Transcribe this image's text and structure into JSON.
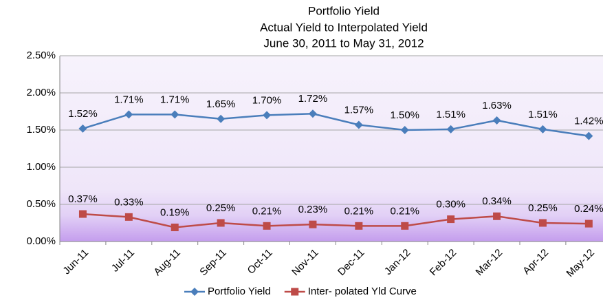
{
  "chart_data": {
    "type": "line",
    "title": "Portfolio Yield",
    "subtitle": [
      "Actual Yield to Interpolated Yield",
      "June 30,  2011  to  May 31,  2012"
    ],
    "categories": [
      "Jun-11",
      "Jul-11",
      "Aug-11",
      "Sep-11",
      "Oct-11",
      "Nov-11",
      "Dec-11",
      "Jan-12",
      "Feb-12",
      "Mar-12",
      "Apr-12",
      "May-12"
    ],
    "series": [
      {
        "name": "Portfolio  Yield",
        "color": "#4a7ebb",
        "marker": "diamond",
        "values": [
          1.52,
          1.71,
          1.71,
          1.65,
          1.7,
          1.72,
          1.57,
          1.5,
          1.51,
          1.63,
          1.51,
          1.42
        ],
        "value_labels": [
          "1.52%",
          "1.71%",
          "1.71%",
          "1.65%",
          "1.70%",
          "1.72%",
          "1.57%",
          "1.50%",
          "1.51%",
          "1.63%",
          "1.51%",
          "1.42%"
        ]
      },
      {
        "name": "Inter- polated Yld Curve",
        "color": "#be4b48",
        "marker": "square",
        "values": [
          0.37,
          0.33,
          0.19,
          0.25,
          0.21,
          0.23,
          0.21,
          0.21,
          0.3,
          0.34,
          0.25,
          0.24
        ],
        "value_labels": [
          "0.37%",
          "0.33%",
          "0.19%",
          "0.25%",
          "0.21%",
          "0.23%",
          "0.21%",
          "0.21%",
          "0.30%",
          "0.34%",
          "0.25%",
          "0.24%"
        ]
      }
    ],
    "ylim": [
      0,
      2.5
    ],
    "yticks": [
      {
        "value": 0,
        "label": "0.00%"
      },
      {
        "value": 0.5,
        "label": "0.50%"
      },
      {
        "value": 1,
        "label": "1.00%"
      },
      {
        "value": 1.5,
        "label": "1.50%"
      },
      {
        "value": 2,
        "label": "2.00%"
      },
      {
        "value": 2.5,
        "label": "2.50%"
      }
    ],
    "grid": true,
    "legend": "bottom"
  }
}
